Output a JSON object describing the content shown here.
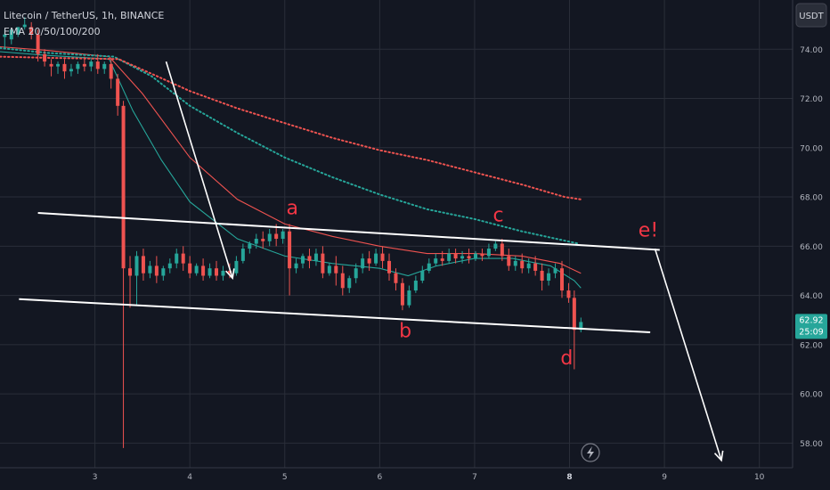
{
  "header": {
    "symbol_line": "Litecoin / TetherUS, 1h, BINANCE",
    "indicator_line": "EMA 20/50/100/200"
  },
  "currency_button": "USDT",
  "colors": {
    "background": "#131722",
    "grid": "#2a2e39",
    "up": "#26a69a",
    "down": "#ef5350",
    "annotation": "#f23645",
    "line": "#ffffff"
  },
  "chart_data": {
    "type": "candlestick",
    "title": "",
    "x_ticks": [
      "3",
      "4",
      "5",
      "6",
      "7",
      "8",
      "9",
      "10"
    ],
    "y_ticks": [
      "74.00",
      "72.00",
      "70.00",
      "68.00",
      "66.00",
      "64.00",
      "62.00",
      "60.00",
      "58.00"
    ],
    "ylim": [
      57.0,
      76.0
    ],
    "xlim": [
      2.0,
      10.35
    ],
    "grid": true,
    "current_price": "62.92",
    "countdown": "25:09",
    "wave_labels": [
      {
        "text": "a",
        "x": 5.08,
        "y": 67.3
      },
      {
        "text": "b",
        "x": 6.27,
        "y": 62.3
      },
      {
        "text": "c",
        "x": 7.25,
        "y": 67.0
      },
      {
        "text": "d",
        "x": 7.97,
        "y": 61.2
      },
      {
        "text": "e!",
        "x": 8.83,
        "y": 66.4
      }
    ],
    "trendlines": [
      {
        "from": [
          2.4,
          67.35
        ],
        "to": [
          8.95,
          65.85
        ]
      },
      {
        "from": [
          2.2,
          63.85
        ],
        "to": [
          8.85,
          62.5
        ]
      }
    ],
    "arrows": [
      {
        "from": [
          3.75,
          73.5
        ],
        "to": [
          4.45,
          64.7
        ]
      },
      {
        "from": [
          8.9,
          65.9
        ],
        "to": [
          9.6,
          57.3
        ]
      }
    ],
    "ema_series": [
      {
        "color": "#26a69a",
        "style": "solid",
        "points": [
          [
            2.0,
            73.9
          ],
          [
            2.5,
            73.75
          ],
          [
            3.15,
            73.6
          ],
          [
            3.4,
            71.5
          ],
          [
            3.7,
            69.5
          ],
          [
            4.0,
            67.8
          ],
          [
            4.5,
            66.3
          ],
          [
            5.0,
            65.6
          ],
          [
            5.5,
            65.3
          ],
          [
            6.0,
            65.1
          ],
          [
            6.3,
            64.8
          ],
          [
            6.6,
            65.2
          ],
          [
            7.0,
            65.5
          ],
          [
            7.4,
            65.5
          ],
          [
            7.8,
            65.2
          ],
          [
            8.05,
            64.6
          ],
          [
            8.12,
            64.3
          ]
        ]
      },
      {
        "color": "#ef5350",
        "style": "solid",
        "points": [
          [
            2.0,
            74.1
          ],
          [
            2.5,
            73.95
          ],
          [
            3.15,
            73.7
          ],
          [
            3.5,
            72.2
          ],
          [
            4.0,
            69.6
          ],
          [
            4.5,
            67.9
          ],
          [
            5.0,
            66.9
          ],
          [
            5.5,
            66.4
          ],
          [
            6.0,
            66.0
          ],
          [
            6.5,
            65.7
          ],
          [
            7.0,
            65.7
          ],
          [
            7.5,
            65.6
          ],
          [
            7.9,
            65.3
          ],
          [
            8.12,
            64.9
          ]
        ]
      },
      {
        "color": "#26a69a",
        "style": "dotted",
        "points": [
          [
            2.0,
            74.05
          ],
          [
            2.5,
            73.85
          ],
          [
            3.2,
            73.7
          ],
          [
            3.6,
            72.9
          ],
          [
            4.0,
            71.7
          ],
          [
            4.5,
            70.6
          ],
          [
            5.0,
            69.6
          ],
          [
            5.5,
            68.8
          ],
          [
            6.0,
            68.1
          ],
          [
            6.5,
            67.5
          ],
          [
            7.0,
            67.1
          ],
          [
            7.5,
            66.6
          ],
          [
            8.1,
            66.1
          ]
        ]
      },
      {
        "color": "#ef5350",
        "style": "dotted",
        "points": [
          [
            2.0,
            73.7
          ],
          [
            2.5,
            73.65
          ],
          [
            3.25,
            73.6
          ],
          [
            3.6,
            73.0
          ],
          [
            4.0,
            72.3
          ],
          [
            4.5,
            71.6
          ],
          [
            5.0,
            71.0
          ],
          [
            5.5,
            70.4
          ],
          [
            6.0,
            69.9
          ],
          [
            6.5,
            69.5
          ],
          [
            7.0,
            69.0
          ],
          [
            7.5,
            68.5
          ],
          [
            7.95,
            68.0
          ],
          [
            8.12,
            67.9
          ]
        ]
      }
    ],
    "candles": [
      [
        2.05,
        74.5,
        74.8,
        74.6,
        74.0
      ],
      [
        2.12,
        74.4,
        74.6,
        74.8,
        74.2
      ],
      [
        2.19,
        74.6,
        74.9,
        74.9,
        74.5
      ],
      [
        2.26,
        74.9,
        75.3,
        75.0,
        74.8
      ],
      [
        2.33,
        74.9,
        75.1,
        74.6,
        74.4
      ],
      [
        2.4,
        74.6,
        74.8,
        73.8,
        73.5
      ],
      [
        2.47,
        73.8,
        74.0,
        73.5,
        73.3
      ],
      [
        2.54,
        73.4,
        73.6,
        73.3,
        72.9
      ],
      [
        2.61,
        73.3,
        73.5,
        73.4,
        73.0
      ],
      [
        2.68,
        73.4,
        73.6,
        73.1,
        72.8
      ],
      [
        2.75,
        73.1,
        73.4,
        73.2,
        72.9
      ],
      [
        2.82,
        73.2,
        73.5,
        73.4,
        73.0
      ],
      [
        2.89,
        73.4,
        73.7,
        73.3,
        73.1
      ],
      [
        2.96,
        73.3,
        73.6,
        73.5,
        73.1
      ],
      [
        3.03,
        73.5,
        73.8,
        73.2,
        73.0
      ],
      [
        3.1,
        73.2,
        73.5,
        73.4,
        73.0
      ],
      [
        3.17,
        73.4,
        73.6,
        72.8,
        72.4
      ],
      [
        3.24,
        72.8,
        73.0,
        71.7,
        71.3
      ],
      [
        3.3,
        71.7,
        71.9,
        65.1,
        57.8
      ],
      [
        3.37,
        65.1,
        65.6,
        64.8,
        63.5
      ],
      [
        3.44,
        64.8,
        65.8,
        65.6,
        63.6
      ],
      [
        3.51,
        65.6,
        65.9,
        64.9,
        64.6
      ],
      [
        3.58,
        64.9,
        65.4,
        65.2,
        64.7
      ],
      [
        3.65,
        65.2,
        65.6,
        64.8,
        64.5
      ],
      [
        3.72,
        64.8,
        65.2,
        65.1,
        64.6
      ],
      [
        3.79,
        65.1,
        65.5,
        65.3,
        64.9
      ],
      [
        3.86,
        65.3,
        65.9,
        65.7,
        65.1
      ],
      [
        3.93,
        65.7,
        66.0,
        65.3,
        65.0
      ],
      [
        4.0,
        65.3,
        65.6,
        64.9,
        64.7
      ],
      [
        4.07,
        64.9,
        65.3,
        65.2,
        64.8
      ],
      [
        4.14,
        65.2,
        65.5,
        64.8,
        64.6
      ],
      [
        4.21,
        64.8,
        65.3,
        65.1,
        64.7
      ],
      [
        4.28,
        65.1,
        65.4,
        64.8,
        64.6
      ],
      [
        4.35,
        64.8,
        65.2,
        65.0,
        64.6
      ],
      [
        4.42,
        65.0,
        65.3,
        64.9,
        64.7
      ],
      [
        4.49,
        64.9,
        65.6,
        65.4,
        64.8
      ],
      [
        4.56,
        65.4,
        66.1,
        65.9,
        65.3
      ],
      [
        4.63,
        65.9,
        66.2,
        66.1,
        65.7
      ],
      [
        4.7,
        66.1,
        66.5,
        66.3,
        65.9
      ],
      [
        4.77,
        66.3,
        66.6,
        66.2,
        65.9
      ],
      [
        4.84,
        66.2,
        66.7,
        66.5,
        66.0
      ],
      [
        4.91,
        66.5,
        66.9,
        66.3,
        66.0
      ],
      [
        4.98,
        66.3,
        66.7,
        66.6,
        66.1
      ],
      [
        5.05,
        66.6,
        66.9,
        65.1,
        64.0
      ],
      [
        5.12,
        65.1,
        65.5,
        65.3,
        64.9
      ],
      [
        5.19,
        65.3,
        65.7,
        65.6,
        65.1
      ],
      [
        5.26,
        65.6,
        65.9,
        65.4,
        65.1
      ],
      [
        5.33,
        65.4,
        65.9,
        65.7,
        65.2
      ],
      [
        5.4,
        65.7,
        66.0,
        64.9,
        64.7
      ],
      [
        5.47,
        64.9,
        65.3,
        65.2,
        64.8
      ],
      [
        5.54,
        65.2,
        65.6,
        64.9,
        64.4
      ],
      [
        5.61,
        64.9,
        65.2,
        64.3,
        64.0
      ],
      [
        5.68,
        64.3,
        64.8,
        64.7,
        64.1
      ],
      [
        5.75,
        64.7,
        65.3,
        65.1,
        64.5
      ],
      [
        5.82,
        65.1,
        65.7,
        65.5,
        64.9
      ],
      [
        5.89,
        65.5,
        65.8,
        65.3,
        65.0
      ],
      [
        5.96,
        65.3,
        65.9,
        65.7,
        65.2
      ],
      [
        6.03,
        65.7,
        66.0,
        65.4,
        65.1
      ],
      [
        6.1,
        65.4,
        65.7,
        64.9,
        64.6
      ],
      [
        6.17,
        64.9,
        65.1,
        64.5,
        64.2
      ],
      [
        6.24,
        64.5,
        64.7,
        63.6,
        63.4
      ],
      [
        6.31,
        63.6,
        64.4,
        64.2,
        63.5
      ],
      [
        6.38,
        64.2,
        64.8,
        64.6,
        64.1
      ],
      [
        6.45,
        64.6,
        65.2,
        65.0,
        64.5
      ],
      [
        6.52,
        65.0,
        65.5,
        65.3,
        64.9
      ],
      [
        6.59,
        65.3,
        65.7,
        65.5,
        65.2
      ],
      [
        6.66,
        65.5,
        65.8,
        65.4,
        65.2
      ],
      [
        6.73,
        65.4,
        65.9,
        65.7,
        65.3
      ],
      [
        6.8,
        65.7,
        65.9,
        65.5,
        65.3
      ],
      [
        6.87,
        65.5,
        65.8,
        65.6,
        65.3
      ],
      [
        6.94,
        65.6,
        65.9,
        65.5,
        65.3
      ],
      [
        7.01,
        65.5,
        65.8,
        65.7,
        65.4
      ],
      [
        7.08,
        65.7,
        65.9,
        65.6,
        65.4
      ],
      [
        7.15,
        65.6,
        66.1,
        65.9,
        65.5
      ],
      [
        7.22,
        65.9,
        66.2,
        66.1,
        65.8
      ],
      [
        7.29,
        66.1,
        66.3,
        65.6,
        65.4
      ],
      [
        7.36,
        65.6,
        65.9,
        65.2,
        65.0
      ],
      [
        7.43,
        65.2,
        65.6,
        65.4,
        65.0
      ],
      [
        7.5,
        65.4,
        65.7,
        65.1,
        64.9
      ],
      [
        7.57,
        65.1,
        65.5,
        65.3,
        64.9
      ],
      [
        7.64,
        65.3,
        65.6,
        65.0,
        64.8
      ],
      [
        7.71,
        65.0,
        65.3,
        64.6,
        64.2
      ],
      [
        7.78,
        64.6,
        65.1,
        64.9,
        64.4
      ],
      [
        7.85,
        64.9,
        65.3,
        65.1,
        64.7
      ],
      [
        7.92,
        65.1,
        65.4,
        64.2,
        63.9
      ],
      [
        7.99,
        64.2,
        64.5,
        63.9,
        63.7
      ],
      [
        8.05,
        63.9,
        64.2,
        62.6,
        61.0
      ],
      [
        8.12,
        62.6,
        63.1,
        62.92,
        62.5
      ]
    ]
  }
}
